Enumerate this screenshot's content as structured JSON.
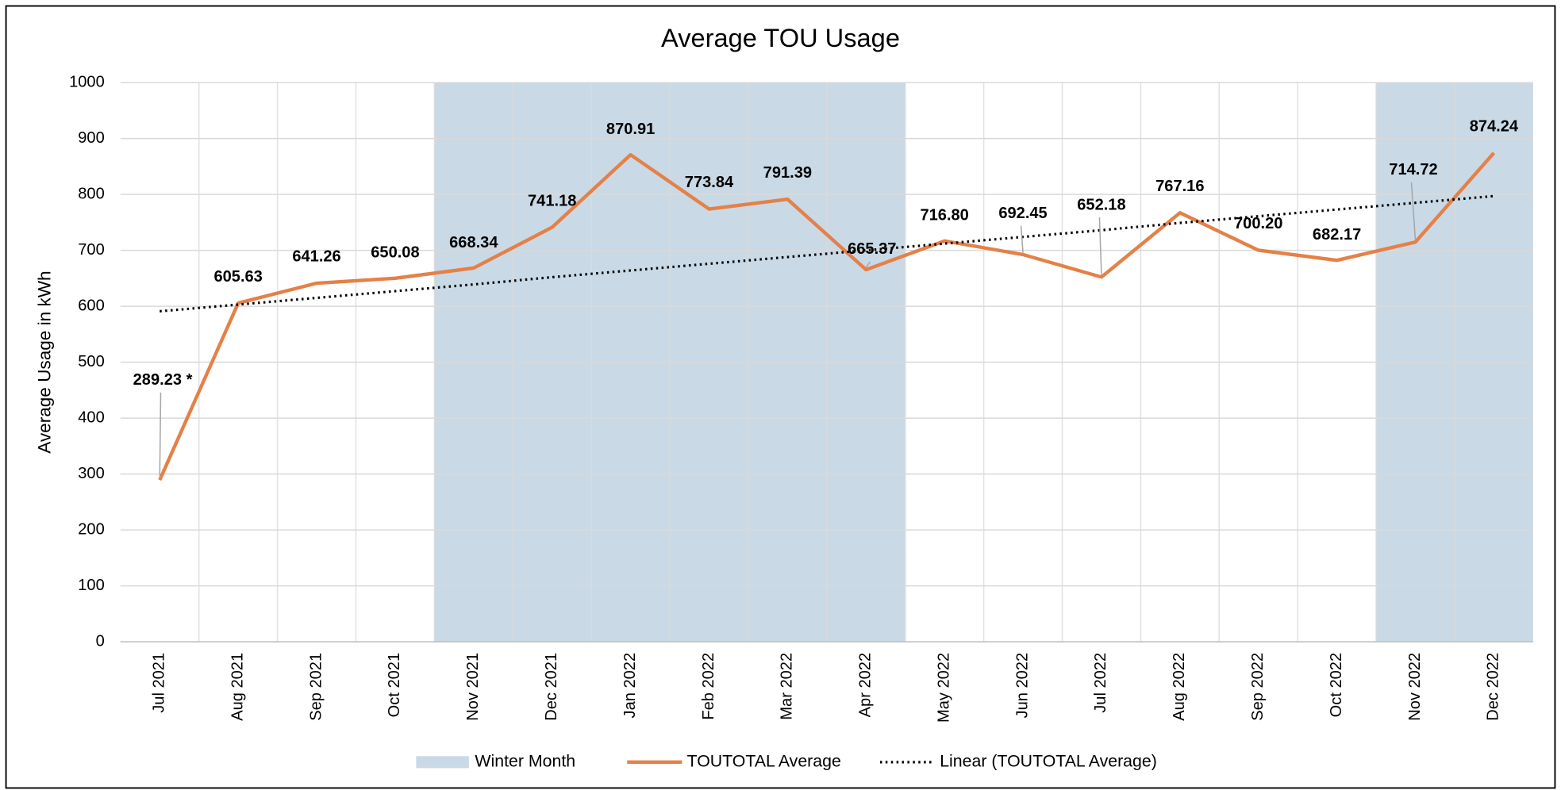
{
  "chart_data": {
    "type": "line",
    "title": "Average TOU Usage",
    "y_label": "Average Usage in kWh",
    "categories": [
      "Jul 2021",
      "Aug 2021",
      "Sep 2021",
      "Oct 2021",
      "Nov 2021",
      "Dec 2021",
      "Jan 2022",
      "Feb 2022",
      "Mar 2022",
      "Apr 2022",
      "May 2022",
      "Jun 2022",
      "Jul 2022",
      "Aug 2022",
      "Sep 2022",
      "Oct 2022",
      "Nov 2022",
      "Dec 2022"
    ],
    "series": [
      {
        "name": "Winter Month",
        "type": "bar",
        "color": "#c9d9e6",
        "values": [
          null,
          null,
          null,
          null,
          1000,
          1000,
          1000,
          1000,
          1000,
          1000,
          null,
          null,
          null,
          null,
          null,
          null,
          1000,
          1000
        ]
      },
      {
        "name": "TOUTOTAL Average",
        "type": "line",
        "color": "#e58047",
        "values": [
          289.23,
          605.63,
          641.26,
          650.08,
          668.34,
          741.18,
          870.91,
          773.84,
          791.39,
          665.37,
          716.8,
          692.45,
          652.18,
          767.16,
          700.2,
          682.17,
          714.72,
          874.24
        ],
        "value_labels": [
          "289.23 *",
          "605.63",
          "641.26",
          "650.08",
          "668.34",
          "741.18",
          "870.91",
          "773.84",
          "791.39",
          "665.37",
          "716.80",
          "692.45",
          "652.18",
          "767.16",
          "700.20",
          "682.17",
          "714.72",
          "874.24"
        ]
      },
      {
        "name": "Linear (TOUTOTAL Average)",
        "type": "line",
        "style": "dotted",
        "color": "#000000",
        "values": [
          591,
          603,
          615,
          627,
          639,
          652,
          664,
          676,
          688,
          700,
          712,
          724,
          736,
          749,
          761,
          773,
          785,
          797
        ]
      }
    ],
    "ylim": [
      0,
      1000
    ],
    "yticks": [
      0,
      100,
      200,
      300,
      400,
      500,
      600,
      700,
      800,
      900,
      1000
    ],
    "grid": true,
    "legend": "bottom"
  }
}
